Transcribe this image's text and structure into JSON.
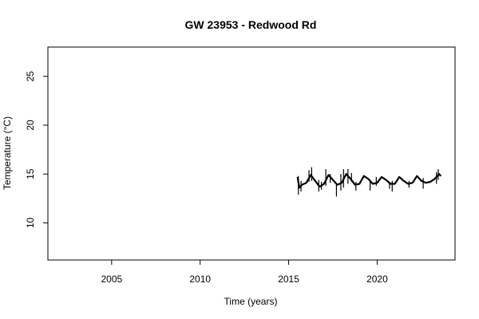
{
  "chart_data": {
    "type": "line",
    "title": "GW 23953 - Redwood Rd",
    "xlabel": "Time (years)",
    "ylabel": "Temperature (°C)",
    "xlim": [
      2001.4,
      2024.4
    ],
    "ylim": [
      6.2,
      28.0
    ],
    "x_ticks": [
      2005,
      2010,
      2015,
      2020
    ],
    "y_ticks": [
      10,
      15,
      20,
      25
    ],
    "grid": false,
    "series": [
      {
        "x": [
          2015.5,
          2015.6,
          2015.75,
          2016.0,
          2016.25,
          2016.5,
          2016.75,
          2017.0,
          2017.25,
          2017.5,
          2017.75,
          2018.0,
          2018.25,
          2018.5,
          2018.75,
          2019.0,
          2019.25,
          2019.5,
          2019.75,
          2020.0,
          2020.25,
          2020.5,
          2020.75,
          2021.0,
          2021.25,
          2021.5,
          2021.75,
          2022.0,
          2022.25,
          2022.5,
          2022.75,
          2023.0,
          2023.25,
          2023.5,
          2023.6
        ],
        "y": [
          14.7,
          13.6,
          13.9,
          14.1,
          14.9,
          14.3,
          13.7,
          14.0,
          14.9,
          14.4,
          13.9,
          14.1,
          15.0,
          14.5,
          13.9,
          14.0,
          14.8,
          14.5,
          14.0,
          14.1,
          14.7,
          14.4,
          14.0,
          14.0,
          14.7,
          14.3,
          14.0,
          14.1,
          14.8,
          14.3,
          14.1,
          14.2,
          14.5,
          15.0,
          14.8
        ],
        "spikes": [
          {
            "x": 2015.55,
            "low": 12.9,
            "high": 14.8
          },
          {
            "x": 2015.7,
            "low": 13.2,
            "high": 14.3
          },
          {
            "x": 2016.15,
            "low": 14.2,
            "high": 15.4
          },
          {
            "x": 2016.3,
            "low": 14.3,
            "high": 15.7
          },
          {
            "x": 2016.7,
            "low": 13.2,
            "high": 14.4
          },
          {
            "x": 2016.85,
            "low": 13.4,
            "high": 14.2
          },
          {
            "x": 2017.1,
            "low": 13.8,
            "high": 15.5
          },
          {
            "x": 2017.35,
            "low": 14.1,
            "high": 15.0
          },
          {
            "x": 2017.7,
            "low": 12.7,
            "high": 14.0
          },
          {
            "x": 2017.95,
            "low": 13.3,
            "high": 15.0
          },
          {
            "x": 2018.1,
            "low": 13.6,
            "high": 15.5
          },
          {
            "x": 2018.35,
            "low": 14.0,
            "high": 15.5
          },
          {
            "x": 2018.55,
            "low": 14.2,
            "high": 15.1
          },
          {
            "x": 2018.8,
            "low": 13.3,
            "high": 14.2
          },
          {
            "x": 2019.6,
            "low": 13.3,
            "high": 14.4
          },
          {
            "x": 2019.95,
            "low": 13.8,
            "high": 14.7
          },
          {
            "x": 2020.7,
            "low": 13.5,
            "high": 14.2
          },
          {
            "x": 2020.85,
            "low": 13.2,
            "high": 14.3
          },
          {
            "x": 2021.8,
            "low": 13.6,
            "high": 14.3
          },
          {
            "x": 2022.6,
            "low": 13.5,
            "high": 14.6
          },
          {
            "x": 2023.35,
            "low": 14.0,
            "high": 15.2
          },
          {
            "x": 2023.45,
            "low": 14.4,
            "high": 15.5
          }
        ]
      }
    ]
  }
}
